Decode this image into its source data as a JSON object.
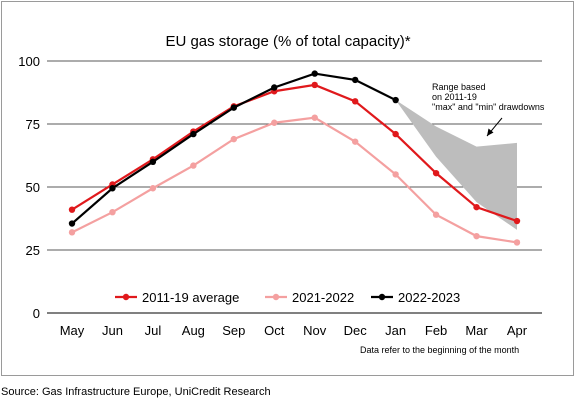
{
  "chart_data": {
    "type": "line",
    "title": "EU gas storage (% of total capacity)*",
    "categories": [
      "May",
      "Jun",
      "Jul",
      "Aug",
      "Sep",
      "Oct",
      "Nov",
      "Dec",
      "Jan",
      "Feb",
      "Mar",
      "Apr"
    ],
    "ylim": [
      0,
      100
    ],
    "yticks": [
      0,
      25,
      50,
      75,
      100
    ],
    "grid": true,
    "legend_position": "bottom",
    "series": [
      {
        "name": "2011-19 average",
        "color": "#e0191c",
        "values": [
          41,
          51,
          61,
          72,
          82,
          88,
          90.5,
          84,
          71,
          55.5,
          42,
          36.5
        ]
      },
      {
        "name": "2021-2022",
        "color": "#f4a0a0",
        "values": [
          32,
          40,
          49.5,
          58.5,
          69,
          75.5,
          77.5,
          68,
          55,
          39,
          30.5,
          28
        ]
      },
      {
        "name": "2022-2023",
        "color": "#000000",
        "values": [
          35.5,
          49.5,
          60,
          71,
          81.5,
          89.5,
          95,
          92.5,
          84.5,
          null,
          null,
          null
        ]
      }
    ],
    "range_band": {
      "color": "#bdbdbd",
      "categories": [
        "Jan",
        "Feb",
        "Mar",
        "Apr"
      ],
      "upper": [
        84.5,
        74,
        66,
        67.5
      ],
      "lower": [
        84.5,
        62,
        44,
        33
      ]
    },
    "annotation": [
      "Range based",
      "on 2011-19",
      "\"max\" and \"min\" drawdowns"
    ],
    "footnote": "Data refer to the beginning of the month"
  },
  "source": "Source: Gas Infrastructure Europe, UniCredit Research"
}
